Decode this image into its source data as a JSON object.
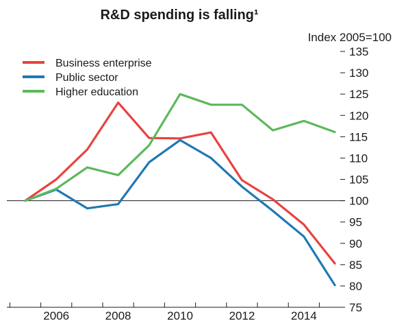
{
  "chart_data": {
    "type": "line",
    "title": "R&D spending is falling¹",
    "unit_label": "Index 2005=100",
    "xlabel": "",
    "ylabel": "",
    "x": [
      2005,
      2006,
      2007,
      2008,
      2009,
      2010,
      2011,
      2012,
      2013,
      2014,
      2015
    ],
    "xlim": [
      2005,
      2015
    ],
    "x_ticks": [
      2006,
      2008,
      2010,
      2012,
      2014
    ],
    "ylim": [
      75,
      135
    ],
    "y_ticks": [
      75,
      80,
      85,
      90,
      95,
      100,
      105,
      110,
      115,
      120,
      125,
      130,
      135
    ],
    "reference_line": 100,
    "grid": false,
    "legend_position": "top-left",
    "series": [
      {
        "name": "Business enterprise",
        "color": "#e8423f",
        "values": [
          100,
          105,
          112,
          123,
          114.7,
          114.6,
          116,
          104.8,
          100.3,
          94.4,
          85.3
        ]
      },
      {
        "name": "Public sector",
        "color": "#1f78b4",
        "values": [
          100,
          102.6,
          98.2,
          99.2,
          109,
          114.2,
          110,
          103.3,
          97.6,
          91.6,
          80.2
        ]
      },
      {
        "name": "Higher education",
        "color": "#5cb85c",
        "values": [
          100,
          102.8,
          107.8,
          106,
          113,
          125,
          122.5,
          122.5,
          116.5,
          118.7,
          116.1
        ]
      }
    ]
  }
}
